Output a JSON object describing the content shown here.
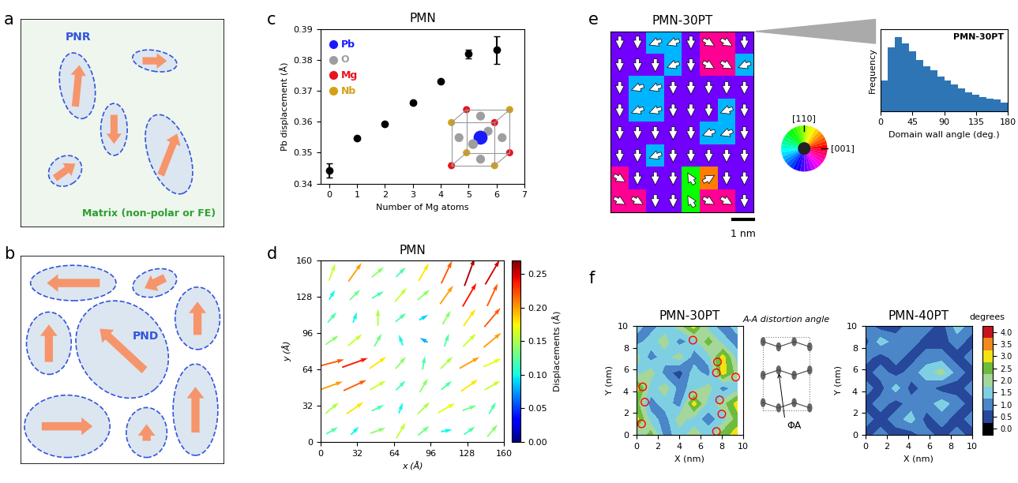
{
  "panel_labels": [
    "a",
    "b",
    "c",
    "d",
    "e",
    "f"
  ],
  "diagram_a": {
    "region_label": "PNR",
    "matrix_label": "Matrix (non-polar or FE)"
  },
  "diagram_b": {
    "region_label": "PND"
  },
  "color_wheel": {
    "labels": [
      "[110]",
      "[001]"
    ]
  },
  "diagram_f": {
    "title": "A-A distortion angle",
    "symbol": "ΦA"
  },
  "chart_data": [
    {
      "type": "scatter",
      "title": "PMN",
      "x": [
        0,
        1,
        2,
        3,
        4,
        5,
        6
      ],
      "values": [
        0.3442,
        0.3546,
        0.3593,
        0.3661,
        0.3731,
        0.3819,
        0.3832
      ],
      "errors": [
        0.0022,
        0.0003,
        0.0003,
        0.0003,
        0.0003,
        0.0013,
        0.0045
      ],
      "color": "#000000",
      "marker": "circle",
      "xlabel": "Number of Mg atoms",
      "ylabel": "Pb displacement (Å)",
      "xlim": [
        -0.3,
        7
      ],
      "xticks": [
        0,
        1,
        2,
        3,
        4,
        5,
        6,
        7
      ],
      "ylim": [
        0.34,
        0.39
      ],
      "yticks": [
        0.34,
        0.35,
        0.36,
        0.37,
        0.38,
        0.39
      ],
      "inset_atoms": [
        {
          "name": "Pb",
          "color": "#1a1aff"
        },
        {
          "name": "O",
          "color": "#9e9e9e"
        },
        {
          "name": "Mg",
          "color": "#e8141e"
        },
        {
          "name": "Nb",
          "color": "#d4a017"
        }
      ]
    },
    {
      "type": "quiver",
      "title": "PMN",
      "x": [
        10,
        30,
        50,
        70,
        90,
        110,
        130,
        150
      ],
      "y": [
        10,
        30,
        50,
        70,
        90,
        110,
        130,
        150
      ],
      "magnitudes": [
        [
          0.12,
          0.1,
          0.14,
          0.16,
          0.13,
          0.1,
          0.12,
          0.14
        ],
        [
          0.15,
          0.18,
          0.12,
          0.1,
          0.15,
          0.17,
          0.13,
          0.12
        ],
        [
          0.2,
          0.22,
          0.16,
          0.12,
          0.14,
          0.12,
          0.18,
          0.16
        ],
        [
          0.22,
          0.24,
          0.18,
          0.14,
          0.12,
          0.15,
          0.2,
          0.17
        ],
        [
          0.14,
          0.16,
          0.13,
          0.1,
          0.08,
          0.12,
          0.16,
          0.2
        ],
        [
          0.12,
          0.1,
          0.15,
          0.12,
          0.09,
          0.14,
          0.18,
          0.22
        ],
        [
          0.1,
          0.13,
          0.12,
          0.16,
          0.14,
          0.2,
          0.24,
          0.22
        ],
        [
          0.16,
          0.2,
          0.14,
          0.12,
          0.18,
          0.22,
          0.26,
          0.25
        ]
      ],
      "angles": [
        [
          30,
          45,
          20,
          60,
          40,
          10,
          35,
          50
        ],
        [
          40,
          35,
          25,
          70,
          45,
          30,
          20,
          60
        ],
        [
          20,
          25,
          30,
          45,
          60,
          40,
          35,
          30
        ],
        [
          15,
          20,
          35,
          50,
          80,
          45,
          30,
          25
        ],
        [
          35,
          40,
          60,
          110,
          150,
          70,
          45,
          40
        ],
        [
          50,
          70,
          90,
          40,
          30,
          60,
          55,
          50
        ],
        [
          60,
          45,
          30,
          50,
          40,
          55,
          60,
          65
        ],
        [
          70,
          55,
          40,
          45,
          60,
          65,
          70,
          60
        ]
      ],
      "xlabel": "x (Å)",
      "ylabel": "y (Å)",
      "xlim": [
        0,
        160
      ],
      "xticks": [
        0,
        32,
        64,
        96,
        128,
        160
      ],
      "ylim": [
        0,
        160
      ],
      "yticks": [
        0,
        32,
        64,
        96,
        128,
        160
      ],
      "colorbar": {
        "label": "Displacements (Å)",
        "range": [
          0,
          0.27
        ],
        "ticks": [
          {
            "value": 0,
            "label": "0.00"
          },
          {
            "value": 0.05,
            "label": "0.05"
          },
          {
            "value": 0.1,
            "label": "0.10"
          },
          {
            "value": 0.15,
            "label": "0.15"
          },
          {
            "value": 0.2,
            "label": "0.20"
          },
          {
            "value": 0.25,
            "label": "0.25"
          }
        ]
      }
    },
    {
      "type": "vector_map",
      "title": "PMN-30PT",
      "tick_labels": false,
      "xlim": [
        0,
        7
      ],
      "ylim": [
        0,
        7
      ],
      "angles": [
        [
          270,
          270,
          200,
          200,
          270,
          330,
          330,
          270
        ],
        [
          270,
          270,
          270,
          200,
          270,
          330,
          330,
          200
        ],
        [
          270,
          200,
          200,
          270,
          270,
          270,
          270,
          270
        ],
        [
          270,
          200,
          200,
          270,
          270,
          270,
          200,
          270
        ],
        [
          270,
          270,
          270,
          270,
          270,
          200,
          200,
          270
        ],
        [
          270,
          270,
          200,
          270,
          270,
          270,
          270,
          270
        ],
        [
          330,
          270,
          270,
          270,
          120,
          30,
          270,
          270
        ],
        [
          330,
          330,
          270,
          270,
          120,
          330,
          330,
          270
        ]
      ],
      "scale_bar": {
        "length": 1,
        "label": "1 nm"
      }
    },
    {
      "type": "histogram",
      "title": "PMN-30PT",
      "tick_labels": "x",
      "color": "#2e75b6",
      "bins": [
        0,
        10,
        20,
        30,
        40,
        50,
        60,
        70,
        80,
        90,
        100,
        110,
        120,
        130,
        140,
        150,
        160,
        170,
        180
      ],
      "counts": [
        30,
        62,
        72,
        66,
        58,
        50,
        44,
        40,
        34,
        30,
        26,
        22,
        18,
        16,
        14,
        12,
        11,
        8
      ],
      "xlabel": "Domain wall angle (deg.)",
      "ylabel": "Frequency",
      "xlim": [
        0,
        180
      ],
      "xticks": [
        0,
        45,
        90,
        135,
        180
      ],
      "ylim": [
        0,
        80
      ]
    },
    {
      "type": "heatmap",
      "title": "PMN-30PT",
      "x": [
        0,
        1.35,
        2.7,
        4.05,
        5.4,
        6.75,
        8.1,
        9.45
      ],
      "y": [
        0,
        1.43,
        2.86,
        4.29,
        5.71,
        7.14,
        8.57,
        10
      ],
      "cells": [
        [
          1.5,
          2.5,
          1.0,
          1.5,
          2.0,
          1.5,
          2.5,
          3.0
        ],
        [
          3.0,
          1.5,
          1.0,
          2.0,
          1.5,
          1.0,
          1.5,
          2.5
        ],
        [
          2.5,
          1.0,
          1.5,
          1.0,
          3.0,
          1.5,
          2.0,
          3.0
        ],
        [
          3.0,
          1.5,
          2.0,
          1.0,
          1.5,
          2.0,
          1.0,
          1.5
        ],
        [
          1.5,
          2.0,
          1.0,
          0.5,
          1.5,
          1.0,
          3.0,
          2.0
        ],
        [
          2.0,
          1.0,
          1.5,
          2.0,
          1.0,
          1.5,
          3.0,
          1.5
        ],
        [
          1.0,
          1.5,
          2.0,
          1.0,
          1.5,
          2.5,
          1.5,
          1.0
        ],
        [
          1.5,
          1.0,
          1.5,
          2.0,
          3.0,
          1.5,
          1.0,
          1.5
        ]
      ],
      "circles": [
        [
          5.3,
          8.7
        ],
        [
          7.6,
          6.7
        ],
        [
          7.5,
          5.7
        ],
        [
          0.6,
          4.4
        ],
        [
          0.8,
          3.0
        ],
        [
          5.3,
          3.6
        ],
        [
          7.8,
          3.2
        ],
        [
          9.3,
          5.3
        ],
        [
          0.5,
          1.0
        ],
        [
          8.0,
          1.9
        ],
        [
          7.5,
          0.3
        ]
      ],
      "xlabel": "X (nm)",
      "ylabel": "Y (nm)",
      "xlim": [
        0,
        10
      ],
      "xticks": [
        0,
        2,
        4,
        6,
        8,
        10
      ],
      "ylim": [
        0,
        10
      ],
      "yticks": [
        0,
        2,
        4,
        6,
        8,
        10
      ]
    },
    {
      "type": "heatmap",
      "title": "PMN-40PT",
      "x": [
        0,
        1.43,
        2.86,
        4.29,
        5.71,
        7.14,
        8.57,
        10
      ],
      "y": [
        0,
        1.43,
        2.86,
        4.29,
        5.71,
        7.14,
        8.57,
        10
      ],
      "cells": [
        [
          0.5,
          1.0,
          0.5,
          0.5,
          1.0,
          0.5,
          1.0,
          0.5
        ],
        [
          1.0,
          0.5,
          1.0,
          1.5,
          0.5,
          1.0,
          0.5,
          1.0
        ],
        [
          0.5,
          1.0,
          0.5,
          1.0,
          1.0,
          1.5,
          1.0,
          0.5
        ],
        [
          1.0,
          0.5,
          1.5,
          0.5,
          1.0,
          0.5,
          0.5,
          1.0
        ],
        [
          0.5,
          1.0,
          0.5,
          1.0,
          1.5,
          2.0,
          1.0,
          0.5
        ],
        [
          1.0,
          0.5,
          1.0,
          0.5,
          1.0,
          1.0,
          0.5,
          1.0
        ],
        [
          0.5,
          1.5,
          1.0,
          1.0,
          0.5,
          0.5,
          1.0,
          0.5
        ],
        [
          1.0,
          0.5,
          0.5,
          1.0,
          1.0,
          0.5,
          1.5,
          1.0
        ]
      ],
      "xlabel": "X (nm)",
      "ylabel": "Y (nm)",
      "xlim": [
        0,
        10
      ],
      "xticks": [
        0,
        2,
        4,
        6,
        8,
        10
      ],
      "ylim": [
        0,
        10
      ],
      "yticks": [
        0,
        2,
        4,
        6,
        8,
        10
      ],
      "colorbar": {
        "label": "degrees",
        "range": [
          -0.25,
          4.25
        ],
        "colors": [
          "#000000",
          "#27489a",
          "#4a86c8",
          "#7fcfe3",
          "#a5d69a",
          "#6dbd3a",
          "#f2e313",
          "#f08a1c",
          "#c8141e"
        ],
        "ticks": [
          {
            "value": 0,
            "label": "0.0"
          },
          {
            "value": 0.5,
            "label": "0.5"
          },
          {
            "value": 1,
            "label": "1.0"
          },
          {
            "value": 1.5,
            "label": "1.5"
          },
          {
            "value": 2,
            "label": "2.0"
          },
          {
            "value": 2.5,
            "label": "2.5"
          },
          {
            "value": 3,
            "label": "3.0"
          },
          {
            "value": 3.5,
            "label": "3.5"
          },
          {
            "value": 4,
            "label": "4.0"
          }
        ]
      }
    }
  ]
}
